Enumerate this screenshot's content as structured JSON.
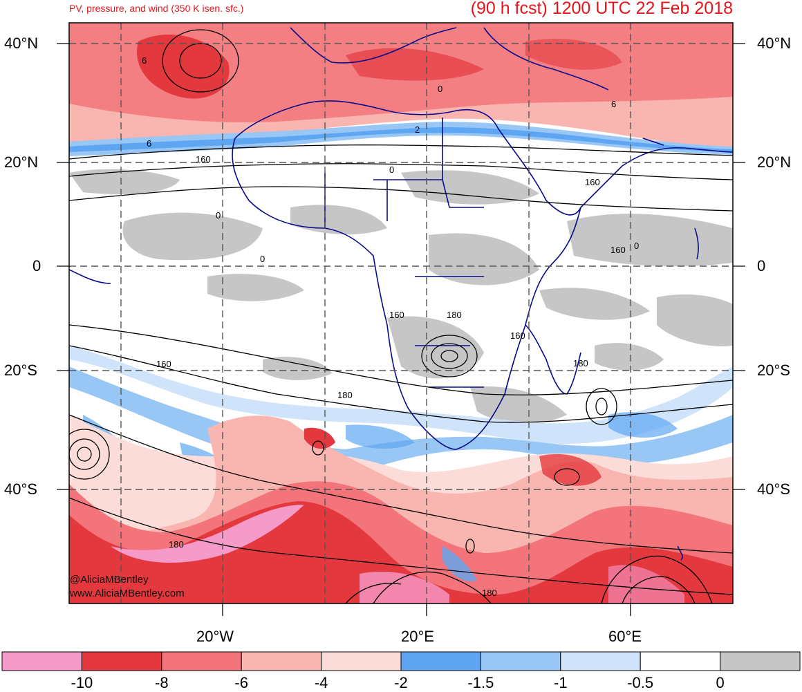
{
  "header": {
    "subtitle": "PV, pressure, and wind (350 K isen. sfc.)",
    "title": "(90 h fcst) 1200 UTC 22 Feb 2018"
  },
  "axes": {
    "lat_left": [
      "40°N",
      "20°N",
      "0",
      "20°S",
      "40°S"
    ],
    "lat_right": [
      "40°N",
      "20°N",
      "0",
      "20°S",
      "40°S"
    ],
    "lon_bottom": [
      "20°W",
      "20°E",
      "60°E"
    ]
  },
  "contour_labels": [
    "6",
    "6",
    "6",
    "2",
    "0",
    "0",
    "0",
    "0",
    "0",
    "160",
    "160",
    "160",
    "160",
    "160",
    "160",
    "180",
    "180",
    "180",
    "180",
    "180"
  ],
  "credits": {
    "handle": "@AliciaMBentley",
    "url": "www.AliciaMBentley.com"
  },
  "colorbar": {
    "colors": [
      "#f59ac9",
      "#e3393e",
      "#f3757b",
      "#f9b5b0",
      "#fcdcd8",
      "#5ea6f2",
      "#98c7f5",
      "#cfe3fa",
      "#ffffff",
      "#c6c6c6"
    ],
    "labels": [
      "-10",
      "-8",
      "-6",
      "-4",
      "-2",
      "-1.5",
      "-1",
      "-0.5",
      "0"
    ]
  },
  "palette": {
    "title_red": "#e8141b",
    "coastline": "#0a0a8c",
    "contour": "#000000",
    "grid": "#555555"
  }
}
